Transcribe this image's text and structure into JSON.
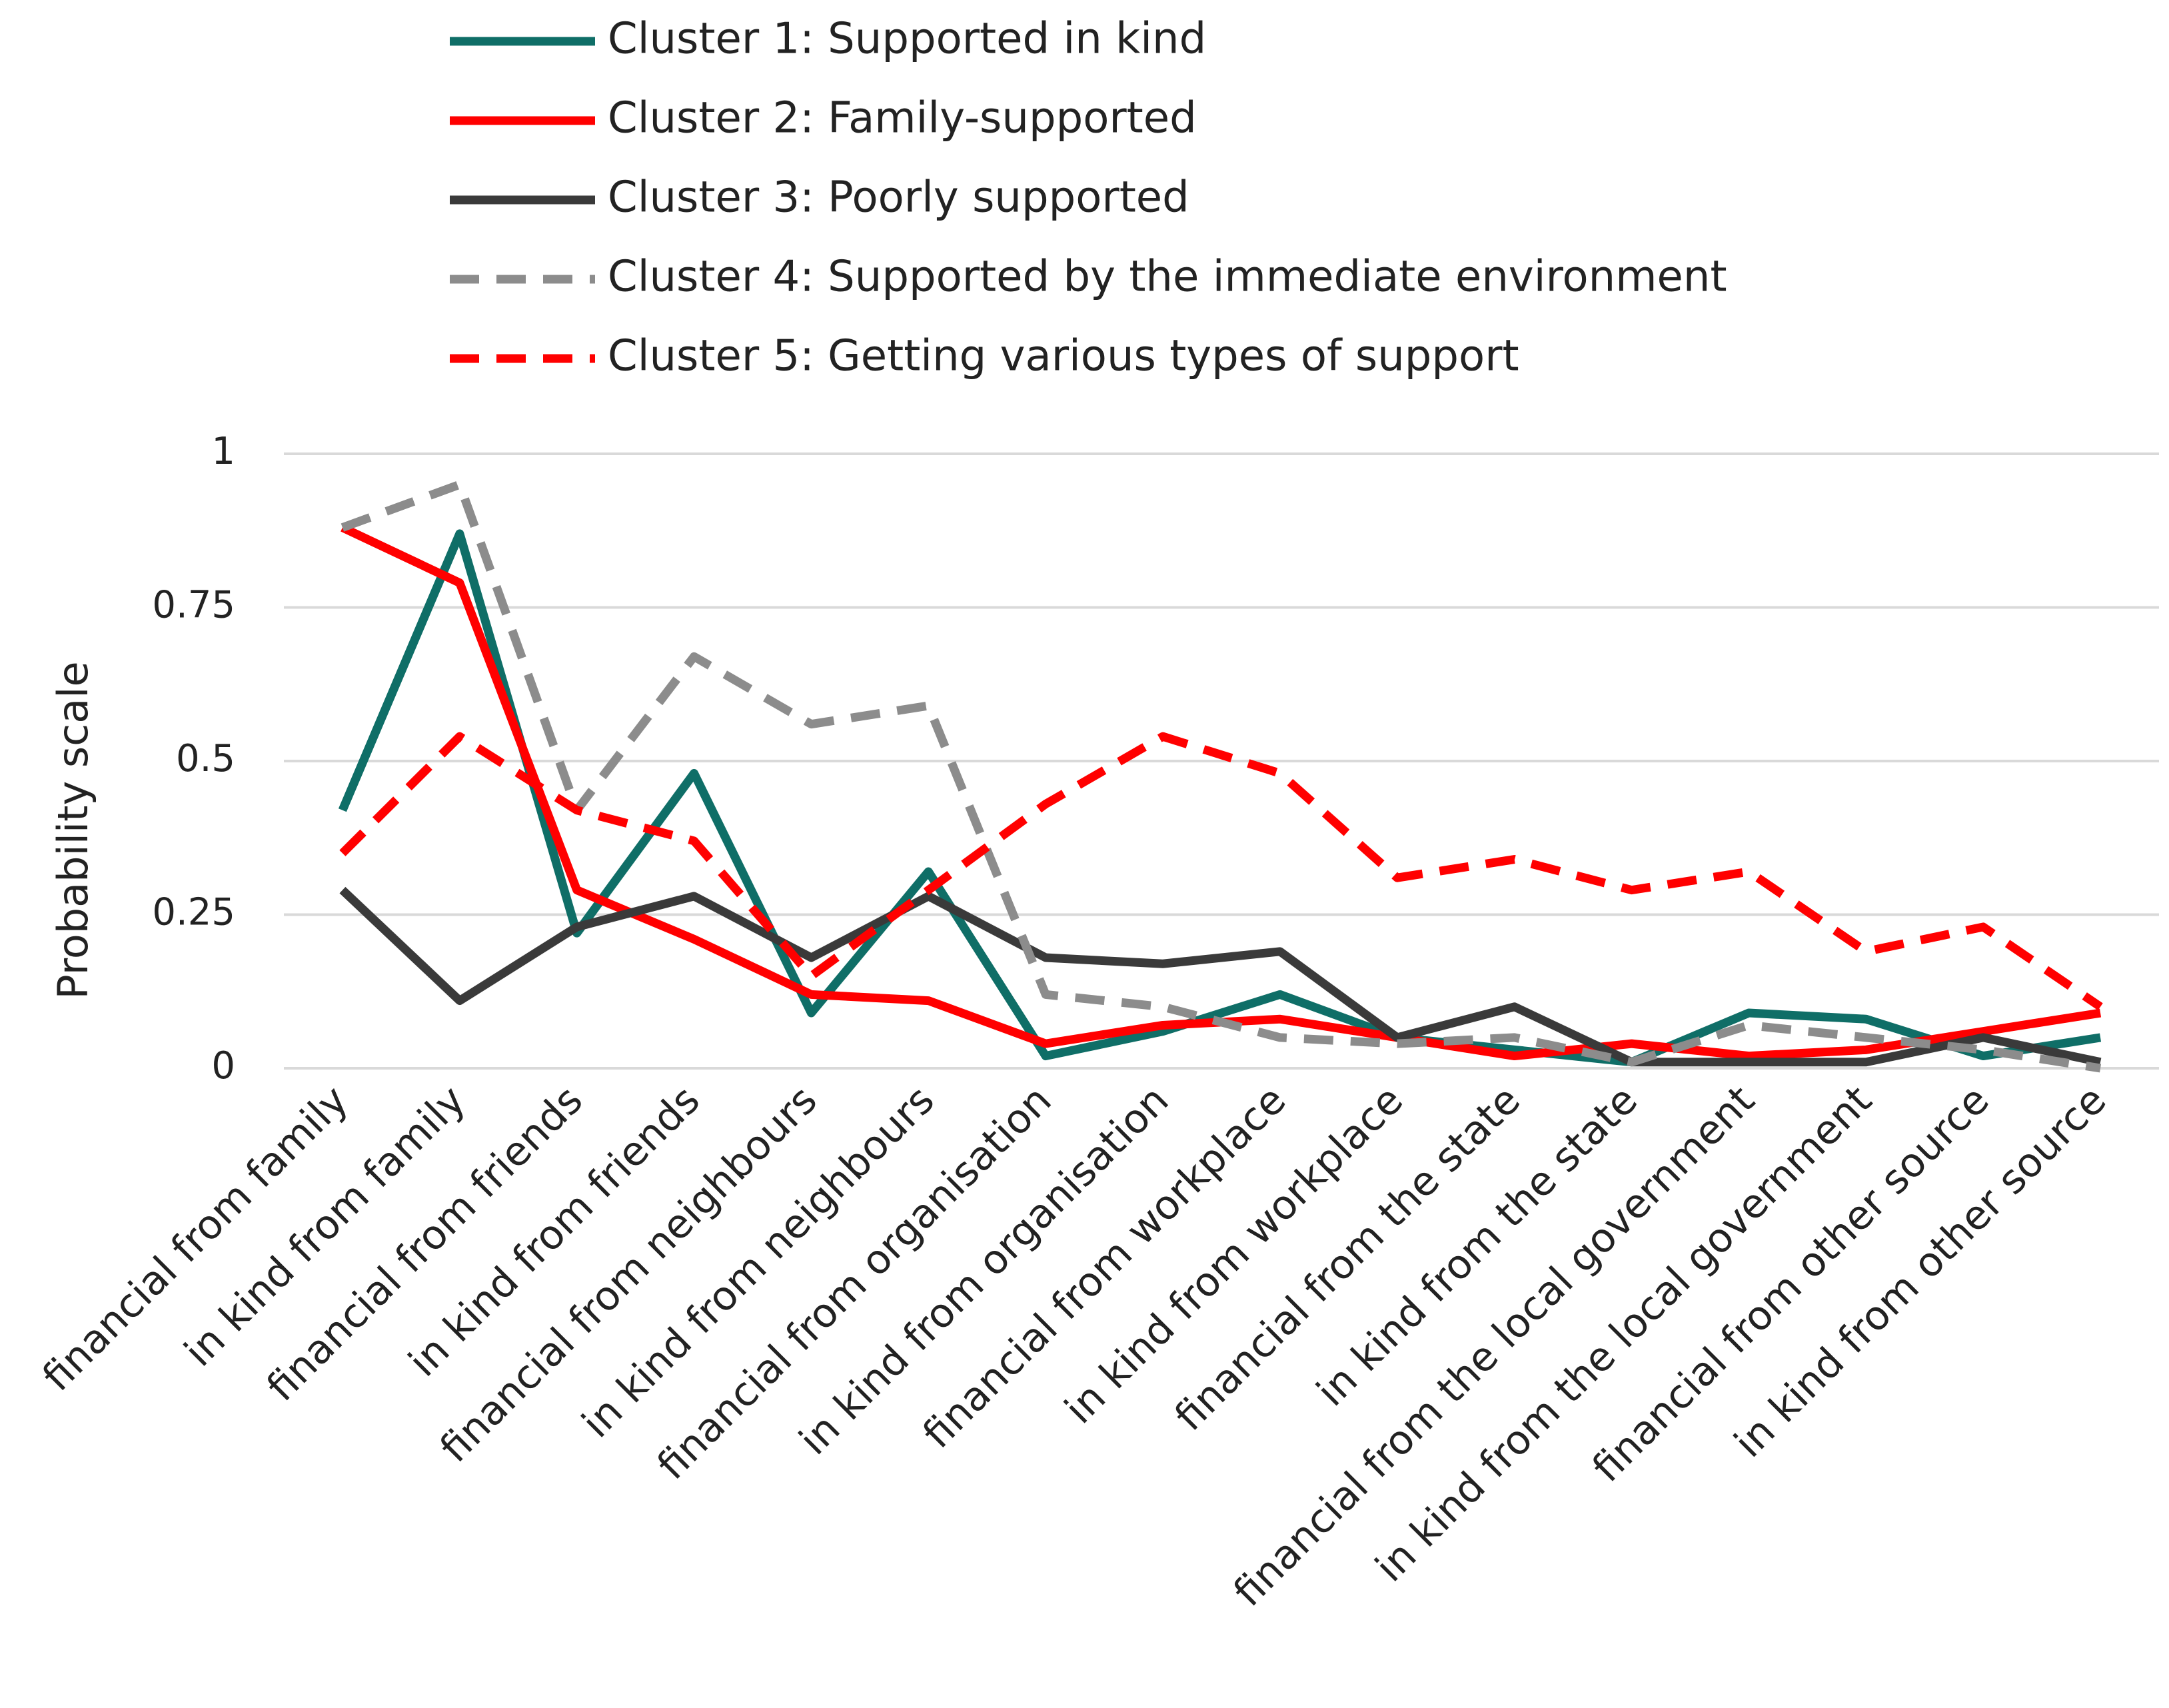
{
  "chart_data": {
    "type": "line",
    "y_label": "Probability scale",
    "categories": [
      "financial from family",
      "in kind from family",
      "financial from friends",
      "in kind from friends",
      "financial from neighbours",
      "in kind from neighbours",
      "financial from organisation",
      "in kind from organisation",
      "financial from workplace",
      "in kind from workplace",
      "financial from the state",
      "in kind from the state",
      "financial from the local government",
      "in kind from the local government",
      "financial from other source",
      "in kind from other source"
    ],
    "series": [
      {
        "name": "Cluster 1: Supported in kind",
        "color": "#0f6e67",
        "line_style": "solid",
        "values": [
          0.42,
          0.87,
          0.22,
          0.48,
          0.09,
          0.32,
          0.02,
          0.06,
          0.12,
          0.05,
          0.03,
          0.01,
          0.09,
          0.08,
          0.02,
          0.05
        ]
      },
      {
        "name": "Cluster 2: Family-supported",
        "color": "#ff0000",
        "line_style": "solid",
        "values": [
          0.88,
          0.79,
          0.29,
          0.21,
          0.12,
          0.11,
          0.04,
          0.07,
          0.08,
          0.05,
          0.02,
          0.04,
          0.02,
          0.03,
          0.06,
          0.09
        ]
      },
      {
        "name": "Cluster 3: Poorly supported",
        "color": "#3a3a3a",
        "line_style": "solid",
        "values": [
          0.29,
          0.11,
          0.23,
          0.28,
          0.18,
          0.28,
          0.18,
          0.17,
          0.19,
          0.05,
          0.1,
          0.01,
          0.01,
          0.01,
          0.05,
          0.01
        ]
      },
      {
        "name": "Cluster 4: Supported by the immediate environment",
        "color": "#8c8c8c",
        "line_style": "dashed",
        "values": [
          0.88,
          0.95,
          0.42,
          0.67,
          0.56,
          0.59,
          0.12,
          0.1,
          0.05,
          0.04,
          0.05,
          0.01,
          0.07,
          0.05,
          0.03,
          0.0
        ]
      },
      {
        "name": "Cluster 5: Getting various types of support",
        "color": "#ff0000",
        "line_style": "dashed",
        "values": [
          0.35,
          0.54,
          0.42,
          0.37,
          0.15,
          0.29,
          0.43,
          0.54,
          0.48,
          0.31,
          0.34,
          0.29,
          0.32,
          0.19,
          0.23,
          0.1
        ]
      }
    ],
    "ylim": [
      0,
      1
    ],
    "yticks": [
      0,
      0.25,
      0.5,
      0.75,
      1
    ],
    "grid": true,
    "legend": "top"
  }
}
